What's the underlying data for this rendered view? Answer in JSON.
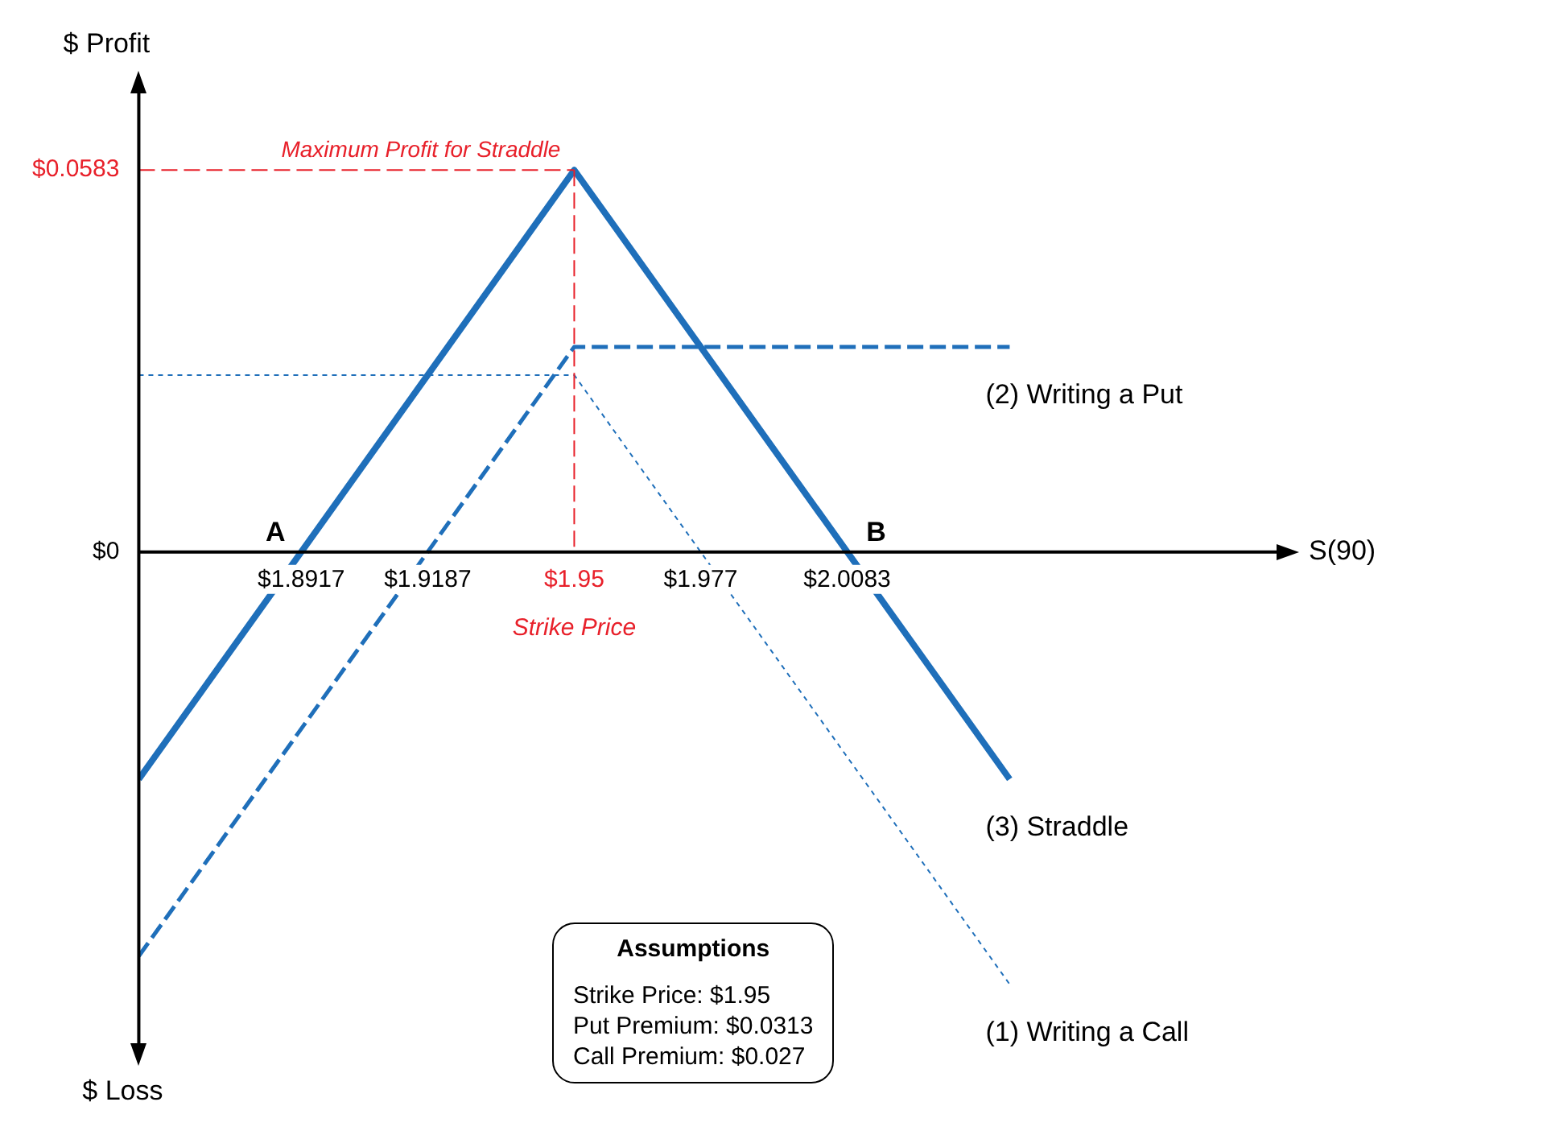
{
  "chart_data": {
    "type": "line",
    "xlabel": "S(90)",
    "ylabel": "$ Profit",
    "xlim": [
      1.857,
      2.1
    ],
    "ylim": [
      -0.075,
      0.07
    ],
    "xticks": [
      {
        "value": 1.8917,
        "label": "$1.8917"
      },
      {
        "value": 1.9187,
        "label": "$1.9187"
      },
      {
        "value": 1.95,
        "label": "$1.95"
      },
      {
        "value": 1.977,
        "label": "$1.977"
      },
      {
        "value": 2.0083,
        "label": "$2.0083"
      }
    ],
    "yticks": [
      {
        "value": 0,
        "label": "$0"
      },
      {
        "value": 0.0583,
        "label": "$0.0583"
      }
    ],
    "grid": false,
    "legend": false,
    "marker": "none",
    "series": [
      {
        "name": "(1) Writing a Call",
        "color": "#1f6fba",
        "line_style": "dotted",
        "x": [
          1.857,
          1.95,
          2.043
        ],
        "values": [
          0.027,
          0.027,
          -0.066
        ]
      },
      {
        "name": "(2) Writing a Put",
        "color": "#1f6fba",
        "line_style": "dashed",
        "x": [
          1.857,
          1.95,
          2.043
        ],
        "values": [
          -0.0617,
          0.0313,
          0.0313
        ]
      },
      {
        "name": "(3) Straddle",
        "color": "#1f6fba",
        "line_style": "solid",
        "x": [
          1.857,
          1.95,
          2.043
        ],
        "values": [
          -0.0347,
          0.0583,
          -0.0347
        ]
      }
    ],
    "ref_lines": [
      {
        "axis": "y",
        "value": 0.0583,
        "color": "#e8202a",
        "line_style": "dashed"
      },
      {
        "axis": "x",
        "value": 1.95,
        "color": "#e8202a",
        "line_style": "dashed"
      }
    ],
    "annotations": [
      {
        "text": "A",
        "x": 1.8917,
        "y": 0
      },
      {
        "text": "B",
        "x": 2.0083,
        "y": 0
      },
      "Maximum Profit for Straddle",
      "Strike Price",
      "$ Loss",
      "Assumptions",
      "Strike Price: $1.95",
      "Put Premium: $0.0313",
      "Call Premium: $0.027"
    ]
  }
}
